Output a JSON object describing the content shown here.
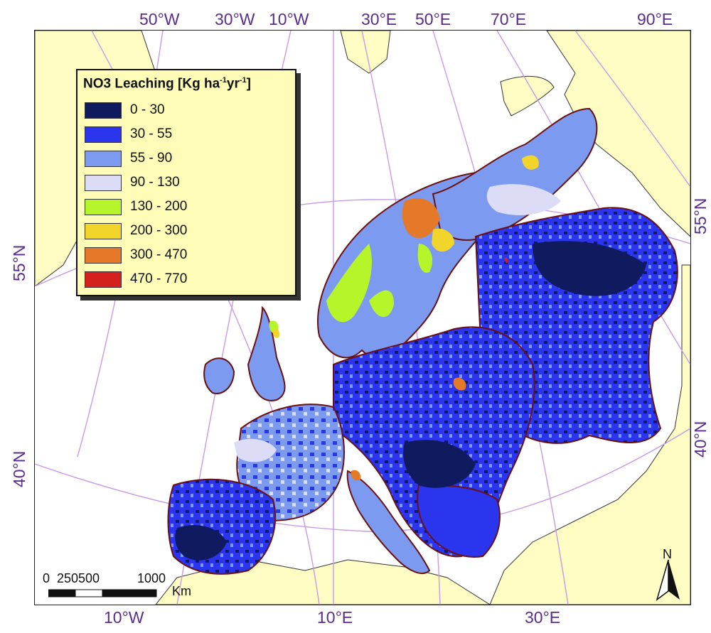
{
  "map": {
    "top_ticks": [
      "50°W",
      "30°W",
      "10°W",
      "30°E",
      "50°E",
      "70°E",
      "90°E"
    ],
    "bottom_ticks": [
      "10°W",
      "10°E",
      "30°E"
    ],
    "left_ticks": [
      "55°N",
      "40°N"
    ],
    "right_ticks": [
      "55°N",
      "40°N"
    ]
  },
  "legend": {
    "title_main": "NO3 Leaching [Kg ha",
    "title_exp1": "-1",
    "title_mid": "yr",
    "title_exp2": "-1",
    "title_end": "]",
    "classes": [
      {
        "label": "0 - 30",
        "color": "#101a5e"
      },
      {
        "label": "30 - 55",
        "color": "#2b35ee"
      },
      {
        "label": "55 - 90",
        "color": "#7c9af0"
      },
      {
        "label": "90 - 130",
        "color": "#dcdcf7"
      },
      {
        "label": "130 - 200",
        "color": "#b6f52a"
      },
      {
        "label": "200 - 300",
        "color": "#f2d52a"
      },
      {
        "label": "300 - 470",
        "color": "#e4792a"
      },
      {
        "label": "470 - 770",
        "color": "#d4201e"
      }
    ]
  },
  "scale_bar": {
    "labels": [
      "0",
      "250",
      "500",
      "1000"
    ],
    "unit": "Km"
  },
  "north_arrow": {
    "label": "N"
  },
  "colors": {
    "land_outside": "#fffcc4",
    "sea": "#ffffff",
    "graticule": "#c79ae6",
    "tick_text": "#5a2d8c",
    "border": "#6a1010"
  }
}
